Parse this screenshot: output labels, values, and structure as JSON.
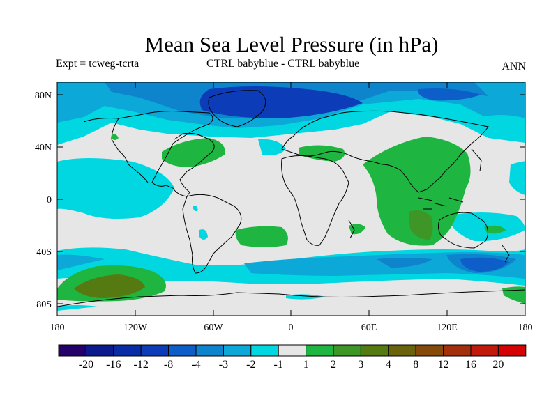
{
  "title": "Mean Sea Level Pressure (in hPa)",
  "subtitle_left": "Expt = tcweg-tcrta",
  "subtitle_center": "CTRL babyblue - CTRL babyblue",
  "subtitle_right": "ANN",
  "lat_labels": [
    "80N",
    "40N",
    "0",
    "40S",
    "80S"
  ],
  "lon_labels": [
    "180",
    "120W",
    "60W",
    "0",
    "60E",
    "120E",
    "180"
  ],
  "colorbar": {
    "colors": [
      "#24006b",
      "#0b1a8c",
      "#0a2ba6",
      "#0c3cb8",
      "#0d5ec8",
      "#0d84cc",
      "#0ca8d8",
      "#00d7e0",
      "#e6e6e6",
      "#1fb541",
      "#3e9626",
      "#557a12",
      "#6b620c",
      "#854a0a",
      "#a3300b",
      "#c11a0b",
      "#d40202"
    ],
    "labels": [
      "-20",
      "-16",
      "-12",
      "-8",
      "-4",
      "-3",
      "-2",
      "-1",
      "1",
      "2",
      "3",
      "4",
      "8",
      "12",
      "16",
      "20"
    ]
  },
  "palette": {
    "neutral": "#e6e6e6",
    "cyan": "#00d7e0",
    "light_blue": "#0ca8d8",
    "mid_blue": "#0d84cc",
    "blue": "#0d5ec8",
    "deep_blue": "#0c3cb8",
    "green": "#1fb541",
    "olive": "#557a12",
    "coast": "#000000"
  }
}
